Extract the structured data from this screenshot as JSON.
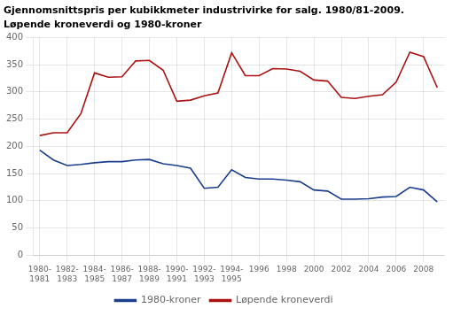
{
  "chart_data": {
    "type": "line",
    "title": "Gjennomsnittspris per kubikkmeter industrivirke for salg. 1980/81-2009.",
    "subtitle": "Løpende kroneverdi og 1980-kroner",
    "x": [
      1980,
      1981,
      1982,
      1983,
      1984,
      1985,
      1986,
      1987,
      1988,
      1989,
      1990,
      1991,
      1992,
      1993,
      1994,
      1995,
      1996,
      1997,
      1998,
      1999,
      2000,
      2001,
      2002,
      2003,
      2004,
      2005,
      2006,
      2007,
      2008,
      2009
    ],
    "series": [
      {
        "name": "1980-kroner",
        "color": "#1a3e8c",
        "values": [
          193,
          175,
          165,
          167,
          170,
          172,
          172,
          175,
          176,
          168,
          165,
          160,
          123,
          125,
          157,
          143,
          140,
          140,
          138,
          135,
          120,
          118,
          103,
          103,
          104,
          107,
          108,
          125,
          120,
          98
        ]
      },
      {
        "name": "Løpende kroneverdi",
        "color": "#aa1111",
        "values": [
          220,
          225,
          225,
          260,
          335,
          327,
          328,
          357,
          358,
          340,
          283,
          285,
          293,
          298,
          372,
          330,
          330,
          343,
          342,
          338,
          322,
          320,
          290,
          288,
          292,
          295,
          318,
          373,
          365,
          308
        ]
      }
    ],
    "xlim": [
      1979.5,
      2009.5
    ],
    "xticks": [
      {
        "value": 1980,
        "label": "1980-\n1981"
      },
      {
        "value": 1982,
        "label": "1982-\n1983"
      },
      {
        "value": 1984,
        "label": "1984-\n1985"
      },
      {
        "value": 1986,
        "label": "1986-\n1987"
      },
      {
        "value": 1988,
        "label": "1988-\n1989"
      },
      {
        "value": 1990,
        "label": "1990-\n1991"
      },
      {
        "value": 1992,
        "label": "1992-\n1993"
      },
      {
        "value": 1994,
        "label": "1994-\n1995"
      },
      1996,
      1998,
      2000,
      2002,
      2004,
      2006,
      2008
    ],
    "ylim": [
      0,
      400
    ],
    "yticks": [
      0,
      50,
      100,
      150,
      200,
      250,
      300,
      350,
      400
    ],
    "grid": true,
    "legend": "bottom"
  }
}
